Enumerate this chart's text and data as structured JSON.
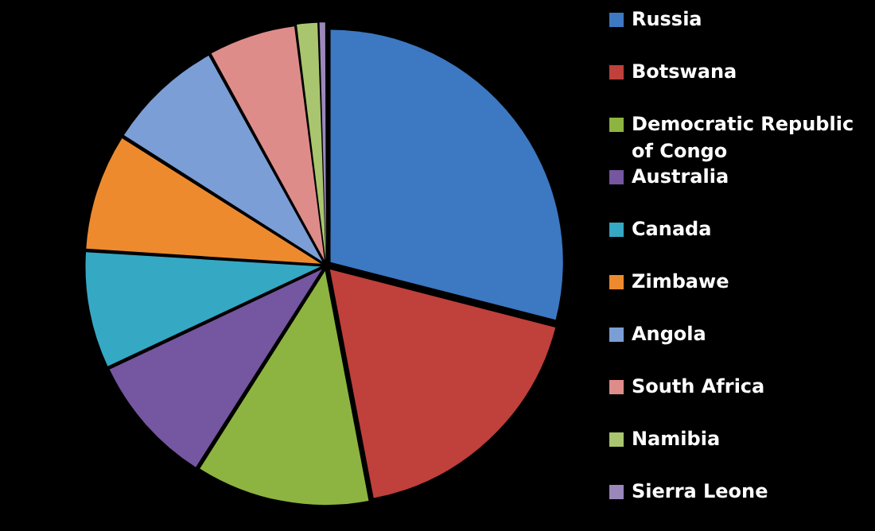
{
  "chart_data": {
    "type": "pie",
    "legend": "right",
    "categories": [
      "Russia",
      "Botswana",
      "Democratic Republic of Congo",
      "Australia",
      "Canada",
      "Zimbawe",
      "Angola",
      "South Africa",
      "Namibia",
      "Sierra Leone"
    ],
    "values": [
      29,
      18,
      12,
      9,
      8,
      8,
      8,
      6,
      1.5,
      0.5
    ],
    "colors": [
      "#3d78c2",
      "#c0403b",
      "#8db440",
      "#7556a0",
      "#35a8c4",
      "#ee8a2e",
      "#7c9ed6",
      "#de8c8a",
      "#a9c56f",
      "#9a88bb"
    ]
  }
}
